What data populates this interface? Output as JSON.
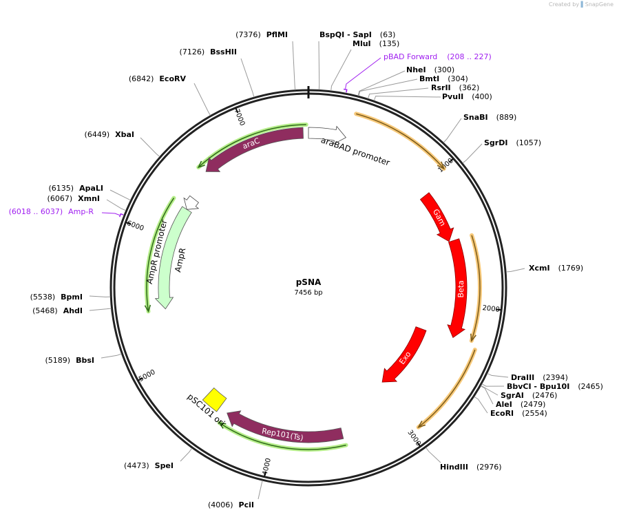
{
  "credit": {
    "prefix": "Created by",
    "brand": "SnapGene"
  },
  "plasmid": {
    "name": "pSNA",
    "length_label": "7456 bp",
    "length": 7456
  },
  "ticks": [
    "1000",
    "2000",
    "3000",
    "4000",
    "5000",
    "6000",
    "7000"
  ],
  "features": [
    {
      "name": "araC",
      "start": 6598,
      "end": 7415,
      "direction": -1,
      "kind": "arrow",
      "color": "#8f2d5f"
    },
    {
      "name": "araBAD promoter",
      "start": 0,
      "end": 290,
      "direction": 1,
      "kind": "arrow",
      "color": "#ffffff"
    },
    {
      "name": "Gam",
      "start": 1071,
      "end": 1487,
      "direction": 1,
      "kind": "arrow",
      "color": "#ff0000"
    },
    {
      "name": "Beta",
      "start": 1490,
      "end": 2258,
      "direction": 1,
      "kind": "arrow",
      "color": "#ff0000"
    },
    {
      "name": "Exo",
      "start": 2278,
      "end": 2941,
      "direction": 1,
      "kind": "arrow",
      "color": "#ff0000"
    },
    {
      "name": "Rep101(Ts)",
      "start": 3458,
      "end": 4412,
      "direction": 1,
      "kind": "arrow",
      "color": "#8f2d5f"
    },
    {
      "name": "pSC101 ori",
      "start": 4485,
      "end": 4625,
      "direction": 0,
      "kind": "box",
      "color": "#ffff00"
    },
    {
      "name": "AmpR",
      "start": 5418,
      "end": 6271,
      "direction": -1,
      "kind": "arrow",
      "color": "#ccffcc"
    },
    {
      "name": "AmpR promoter",
      "start": 6271,
      "end": 6375,
      "direction": -1,
      "kind": "arrow",
      "color": "#ffffff"
    }
  ],
  "tracks": [
    {
      "start": 317,
      "end": 1008,
      "direction": 1,
      "color": "#f7c97a"
    },
    {
      "start": 1495,
      "end": 2237,
      "direction": 1,
      "color": "#f7c97a"
    },
    {
      "start": 2287,
      "end": 2936,
      "direction": 1,
      "color": "#f7c97a"
    },
    {
      "start": 6578,
      "end": 7440,
      "direction": -1,
      "color": "#b6ee8a"
    },
    {
      "start": 5418,
      "end": 6290,
      "direction": -1,
      "color": "#b6ee8a"
    },
    {
      "start": 3450,
      "end": 4420,
      "direction": 1,
      "color": "#b6ee8a"
    }
  ],
  "enzymes": [
    {
      "name": "PflMI",
      "pos": "7376",
      "bp": 7376
    },
    {
      "name": "BssHII",
      "pos": "7126",
      "bp": 7126
    },
    {
      "name": "EcoRV",
      "pos": "6842",
      "bp": 6842
    },
    {
      "name": "XbaI",
      "pos": "6449",
      "bp": 6449
    },
    {
      "name": "ApaLI",
      "pos": "6135",
      "bp": 6135
    },
    {
      "name": "XmnI",
      "pos": "6067",
      "bp": 6067
    },
    {
      "name": "BpmI",
      "pos": "5538",
      "bp": 5538
    },
    {
      "name": "AhdI",
      "pos": "5468",
      "bp": 5468
    },
    {
      "name": "BbsI",
      "pos": "5189",
      "bp": 5189
    },
    {
      "name": "SpeI",
      "pos": "4473",
      "bp": 4473
    },
    {
      "name": "PciI",
      "pos": "4006",
      "bp": 4006
    },
    {
      "name": "BspQI  - SapI",
      "pos": "63",
      "bp": 63
    },
    {
      "name": "MluI",
      "pos": "135",
      "bp": 135
    },
    {
      "name": "NheI",
      "pos": "300",
      "bp": 300
    },
    {
      "name": "BmtI",
      "pos": "304",
      "bp": 304
    },
    {
      "name": "RsrII",
      "pos": "362",
      "bp": 362
    },
    {
      "name": "PvuII",
      "pos": "400",
      "bp": 400
    },
    {
      "name": "SnaBI",
      "pos": "889",
      "bp": 889
    },
    {
      "name": "SgrDI",
      "pos": "1057",
      "bp": 1057
    },
    {
      "name": "XcmI",
      "pos": "1769",
      "bp": 1769
    },
    {
      "name": "DraIII",
      "pos": "2394",
      "bp": 2394
    },
    {
      "name": "BbvCI  - Bpu10I",
      "pos": "2465",
      "bp": 2465
    },
    {
      "name": "SgrAI",
      "pos": "2476",
      "bp": 2476
    },
    {
      "name": "AleI",
      "pos": "2479",
      "bp": 2479
    },
    {
      "name": "EcoRI",
      "pos": "2554",
      "bp": 2554
    },
    {
      "name": "HindIII",
      "pos": "2976",
      "bp": 2976
    }
  ],
  "primers": [
    {
      "name": "pBAD Forward",
      "range": "(208 .. 227)",
      "start": 208,
      "end": 227
    },
    {
      "name": "Amp-R",
      "range": "(6018 .. 6037)",
      "start": 6018,
      "end": 6037
    }
  ],
  "colors": {
    "primer": "#a020f0",
    "ring": "#222222"
  }
}
